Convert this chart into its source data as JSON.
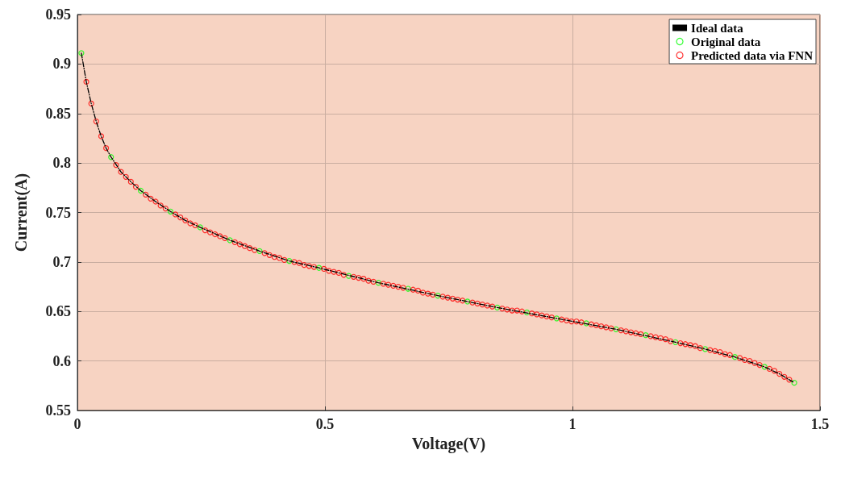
{
  "chart_data": {
    "type": "scatter",
    "xlabel": "Voltage(V)",
    "ylabel": "Current(A)",
    "xlim": [
      0,
      1.5
    ],
    "xticks": [
      0,
      0.5,
      1,
      1.5
    ],
    "ylim": [
      0.55,
      0.95
    ],
    "yticks": [
      0.55,
      0.6,
      0.65,
      0.7,
      0.75,
      0.8,
      0.85,
      0.9,
      0.95
    ],
    "grid": true,
    "legend": "top right",
    "series": [
      {
        "name": "Ideal data",
        "type": "line",
        "color": "#000000",
        "line_style": "dashed",
        "marker": "none",
        "x": [
          0.008,
          0.018,
          0.028,
          0.038,
          0.048,
          0.058,
          0.068,
          0.088,
          0.108,
          0.128,
          0.158,
          0.188,
          0.218,
          0.248,
          0.308,
          0.368,
          0.428,
          0.488,
          0.608,
          0.728,
          0.848,
          0.968,
          1.088,
          1.208,
          1.268,
          1.328,
          1.388,
          1.418,
          1.448
        ],
        "values": [
          0.911,
          0.882,
          0.86,
          0.842,
          0.827,
          0.815,
          0.806,
          0.791,
          0.781,
          0.772,
          0.761,
          0.751,
          0.742,
          0.735,
          0.722,
          0.711,
          0.701,
          0.694,
          0.679,
          0.666,
          0.654,
          0.643,
          0.632,
          0.619,
          0.612,
          0.604,
          0.594,
          0.587,
          0.578
        ]
      },
      {
        "name": "Original data",
        "color": "#00ff00",
        "marker": "circle",
        "x": [
          0.008,
          0.068,
          0.128,
          0.188,
          0.248,
          0.308,
          0.368,
          0.428,
          0.488,
          0.548,
          0.608,
          0.668,
          0.728,
          0.788,
          0.848,
          0.908,
          0.968,
          1.028,
          1.088,
          1.148,
          1.208,
          1.268,
          1.328,
          1.388,
          1.448
        ],
        "values": [
          0.911,
          0.806,
          0.772,
          0.751,
          0.735,
          0.722,
          0.711,
          0.701,
          0.694,
          0.686,
          0.679,
          0.673,
          0.666,
          0.66,
          0.654,
          0.649,
          0.643,
          0.638,
          0.632,
          0.626,
          0.619,
          0.612,
          0.604,
          0.594,
          0.578
        ]
      },
      {
        "name": "Predicted data via FNN",
        "color": "#ff0000",
        "marker": "circle",
        "x": [
          0.018,
          0.028,
          0.038,
          0.048,
          0.058,
          0.078,
          0.088,
          0.098,
          0.108,
          0.118,
          0.138,
          0.148,
          0.158,
          0.168,
          0.178,
          0.198,
          0.208,
          0.218,
          0.228,
          0.238,
          0.258,
          0.268,
          0.278,
          0.288,
          0.298,
          0.318,
          0.328,
          0.338,
          0.348,
          0.358,
          0.378,
          0.388,
          0.398,
          0.408,
          0.418,
          0.438,
          0.448,
          0.458,
          0.468,
          0.478,
          0.498,
          0.508,
          0.518,
          0.528,
          0.538,
          0.558,
          0.568,
          0.578,
          0.588,
          0.598,
          0.618,
          0.628,
          0.638,
          0.648,
          0.658,
          0.678,
          0.688,
          0.698,
          0.708,
          0.718,
          0.738,
          0.748,
          0.758,
          0.768,
          0.778,
          0.798,
          0.808,
          0.818,
          0.828,
          0.838,
          0.858,
          0.868,
          0.878,
          0.888,
          0.898,
          0.918,
          0.928,
          0.938,
          0.948,
          0.958,
          0.978,
          0.988,
          0.998,
          1.008,
          1.018,
          1.038,
          1.048,
          1.058,
          1.068,
          1.078,
          1.098,
          1.108,
          1.118,
          1.128,
          1.138,
          1.158,
          1.168,
          1.178,
          1.188,
          1.198,
          1.218,
          1.228,
          1.238,
          1.248,
          1.258,
          1.278,
          1.288,
          1.298,
          1.308,
          1.318,
          1.338,
          1.348,
          1.358,
          1.368,
          1.378,
          1.398,
          1.408,
          1.418,
          1.428,
          1.438
        ],
        "values": [
          0.882,
          0.86,
          0.842,
          0.827,
          0.815,
          0.798,
          0.791,
          0.786,
          0.781,
          0.776,
          0.768,
          0.764,
          0.761,
          0.757,
          0.754,
          0.748,
          0.745,
          0.742,
          0.739,
          0.737,
          0.732,
          0.73,
          0.728,
          0.726,
          0.724,
          0.72,
          0.718,
          0.716,
          0.714,
          0.712,
          0.709,
          0.707,
          0.705,
          0.704,
          0.702,
          0.7,
          0.699,
          0.697,
          0.696,
          0.695,
          0.693,
          0.691,
          0.69,
          0.689,
          0.687,
          0.685,
          0.684,
          0.683,
          0.681,
          0.68,
          0.678,
          0.677,
          0.676,
          0.675,
          0.674,
          0.672,
          0.671,
          0.669,
          0.668,
          0.667,
          0.665,
          0.664,
          0.663,
          0.662,
          0.661,
          0.659,
          0.658,
          0.657,
          0.656,
          0.655,
          0.653,
          0.652,
          0.651,
          0.651,
          0.65,
          0.648,
          0.647,
          0.646,
          0.645,
          0.644,
          0.642,
          0.641,
          0.64,
          0.64,
          0.639,
          0.637,
          0.636,
          0.635,
          0.634,
          0.633,
          0.631,
          0.63,
          0.629,
          0.628,
          0.627,
          0.625,
          0.624,
          0.623,
          0.622,
          0.62,
          0.618,
          0.617,
          0.616,
          0.615,
          0.613,
          0.611,
          0.61,
          0.609,
          0.607,
          0.606,
          0.603,
          0.601,
          0.6,
          0.598,
          0.596,
          0.592,
          0.59,
          0.587,
          0.584,
          0.581
        ]
      }
    ]
  }
}
